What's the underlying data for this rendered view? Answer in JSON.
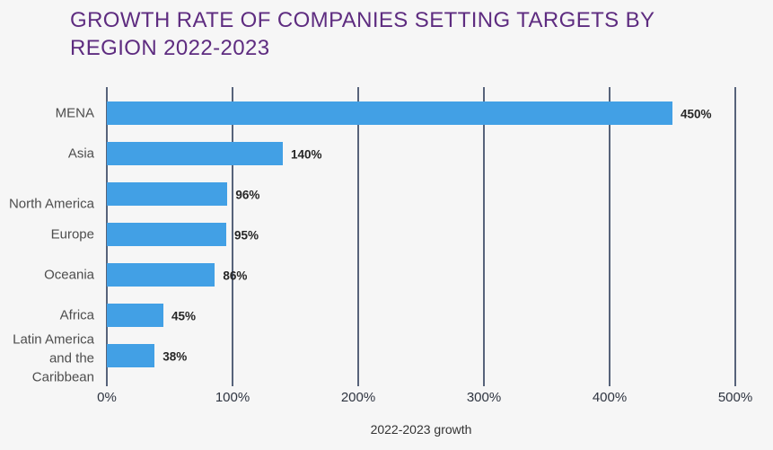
{
  "title_lines": [
    "GROWTH RATE OF COMPANIES SETTING TARGETS BY",
    "REGION 2022-2023"
  ],
  "chart_data": {
    "type": "bar",
    "orientation": "horizontal",
    "title": "GROWTH RATE OF COMPANIES SETTING TARGETS BY REGION 2022-2023",
    "categories": [
      "MENA",
      "Asia",
      "North America",
      "Europe",
      "Oceania",
      "Africa",
      "Latin America and the Caribbean"
    ],
    "values": [
      450,
      140,
      96,
      95,
      86,
      45,
      38
    ],
    "value_labels": [
      "450%",
      "140%",
      "96%",
      "95%",
      "86%",
      "45%",
      "38%"
    ],
    "xlabel": "2022-2023 growth",
    "x_ticks": [
      "0%",
      "100%",
      "200%",
      "300%",
      "400%",
      "500%"
    ],
    "x_tick_values": [
      0,
      100,
      200,
      300,
      400,
      500
    ],
    "xlim": [
      0,
      500
    ],
    "grid": true,
    "legend": false
  },
  "colors": {
    "background": "#F6F6F6",
    "bar": "#42A0E5",
    "title": "#5E2C80",
    "gridline": "#57637A",
    "category_label": "#4D4D4D",
    "value_label": "#262626",
    "tick_label": "#2E3440",
    "axis_label": "#333333"
  }
}
